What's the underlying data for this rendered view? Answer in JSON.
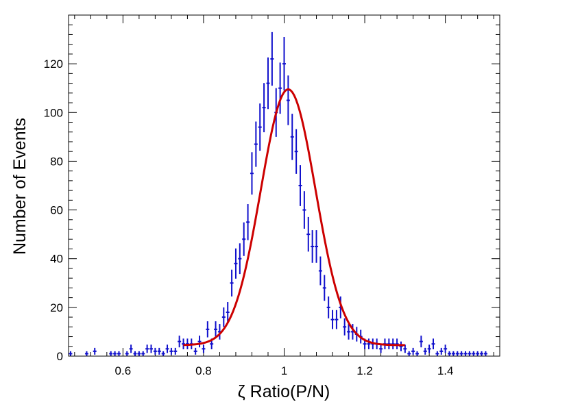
{
  "chart_data": {
    "type": "scatter",
    "title": "",
    "xlabel": "ζ Ratio(P/N)",
    "ylabel": "Number of Events",
    "xlim": [
      0.465,
      1.535
    ],
    "ylim": [
      0,
      140
    ],
    "x_ticks": [
      0.6,
      0.8,
      1.0,
      1.2,
      1.4
    ],
    "x_tick_labels": [
      "0.6",
      "0.8",
      "1",
      "1.2",
      "1.4"
    ],
    "y_ticks": [
      0,
      20,
      40,
      60,
      80,
      100,
      120
    ],
    "y_tick_labels": [
      "0",
      "20",
      "40",
      "60",
      "80",
      "100",
      "120"
    ],
    "grid": false,
    "legend": "none",
    "colors": {
      "data": "#1010cc",
      "fit": "#cc0000",
      "axis": "#000000"
    },
    "series": [
      {
        "kind": "points_with_errors",
        "x": [
          0.47,
          0.51,
          0.53,
          0.57,
          0.58,
          0.59,
          0.61,
          0.62,
          0.63,
          0.64,
          0.65,
          0.66,
          0.67,
          0.68,
          0.69,
          0.7,
          0.71,
          0.72,
          0.73,
          0.74,
          0.75,
          0.76,
          0.77,
          0.78,
          0.79,
          0.8,
          0.81,
          0.82,
          0.83,
          0.84,
          0.85,
          0.86,
          0.87,
          0.88,
          0.89,
          0.9,
          0.91,
          0.92,
          0.93,
          0.94,
          0.95,
          0.96,
          0.97,
          0.98,
          0.99,
          1.0,
          1.01,
          1.02,
          1.03,
          1.04,
          1.05,
          1.06,
          1.07,
          1.08,
          1.09,
          1.1,
          1.11,
          1.12,
          1.13,
          1.14,
          1.15,
          1.16,
          1.17,
          1.18,
          1.19,
          1.2,
          1.21,
          1.22,
          1.23,
          1.24,
          1.25,
          1.26,
          1.27,
          1.28,
          1.29,
          1.3,
          1.31,
          1.32,
          1.33,
          1.34,
          1.35,
          1.36,
          1.37,
          1.38,
          1.39,
          1.4,
          1.41,
          1.42,
          1.43,
          1.44,
          1.45,
          1.46,
          1.47,
          1.48,
          1.49,
          1.5
        ],
        "y": [
          1,
          1,
          2,
          1,
          1,
          1,
          1,
          3,
          1,
          1,
          1,
          3,
          3,
          2,
          2,
          1,
          3,
          2,
          2,
          6,
          5,
          5,
          5,
          2,
          6,
          3,
          11,
          5,
          11,
          10,
          16,
          18,
          30,
          38,
          40,
          48,
          55,
          75,
          87,
          94,
          102,
          112,
          122,
          100,
          110,
          120,
          105,
          90,
          84,
          70,
          60,
          50,
          45,
          45,
          35,
          28,
          20,
          15,
          15,
          20,
          12,
          10,
          10,
          9,
          8,
          5,
          5,
          5,
          5,
          3,
          5,
          5,
          5,
          5,
          4,
          3,
          1,
          2,
          1,
          6,
          2,
          3,
          5,
          1,
          2,
          3,
          1,
          1,
          1,
          1,
          1,
          1,
          1,
          1,
          1,
          1
        ],
        "y_err": [
          1,
          1,
          1.4,
          1,
          1,
          1,
          1,
          1.7,
          1,
          1,
          1,
          1.7,
          1.7,
          1.4,
          1.4,
          1,
          1.7,
          1.4,
          1.4,
          2.4,
          2.2,
          2.2,
          2.2,
          1.4,
          2.4,
          1.7,
          3.3,
          2.2,
          3.3,
          3.2,
          4,
          4.2,
          5.5,
          6.2,
          6.3,
          6.9,
          7.4,
          8.7,
          9.3,
          9.7,
          10.1,
          10.6,
          11,
          10,
          10.5,
          11,
          10.2,
          9.5,
          9.2,
          8.4,
          7.7,
          7.1,
          6.7,
          6.7,
          5.9,
          5.3,
          4.5,
          3.9,
          3.9,
          4.5,
          3.5,
          3.2,
          3.2,
          3,
          2.8,
          2.2,
          2.2,
          2.2,
          2.2,
          1.7,
          2.2,
          2.2,
          2.2,
          2.2,
          2,
          1.7,
          1,
          1.4,
          1,
          2.4,
          1.4,
          1.7,
          2.2,
          1,
          1.4,
          1.7,
          1,
          1,
          1,
          1,
          1,
          1,
          1,
          1,
          1,
          1
        ]
      },
      {
        "kind": "fit_curve",
        "model": "gaussian_plus_constant",
        "x_range": [
          0.75,
          1.3
        ],
        "amplitude": 105,
        "mean": 1.01,
        "sigma": 0.068,
        "constant": 4.5
      }
    ]
  }
}
